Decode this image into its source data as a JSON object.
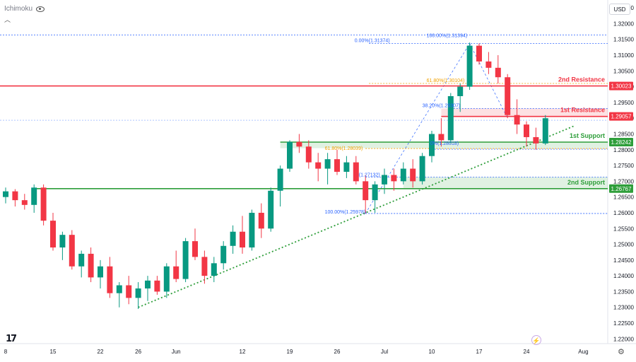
{
  "indicator": {
    "label": "Ichimoku"
  },
  "currency": {
    "label": "USD"
  },
  "chart_data": {
    "type": "candlestick",
    "symbol_hint": "GBP/USD daily-like candles",
    "ylim": [
      1.2185,
      1.3275
    ],
    "y_ticks": [
      "1.32500",
      "1.32000",
      "1.31500",
      "1.31000",
      "1.30500",
      "1.30000",
      "1.29500",
      "1.29000",
      "1.28500",
      "1.28000",
      "1.27500",
      "1.27000",
      "1.26500",
      "1.26000",
      "1.25500",
      "1.25000",
      "1.24500",
      "1.24000",
      "1.23500",
      "1.23000",
      "1.22500",
      "1.22000"
    ],
    "x_ticks": [
      {
        "label": "8",
        "i": 0
      },
      {
        "label": "15",
        "i": 5
      },
      {
        "label": "22",
        "i": 10
      },
      {
        "label": "26",
        "i": 14
      },
      {
        "label": "Jun",
        "i": 18
      },
      {
        "label": "12",
        "i": 25
      },
      {
        "label": "19",
        "i": 30
      },
      {
        "label": "26",
        "i": 35
      },
      {
        "label": "Jul",
        "i": 40
      },
      {
        "label": "10",
        "i": 45
      },
      {
        "label": "17",
        "i": 50
      },
      {
        "label": "24",
        "i": 55
      },
      {
        "label": "Aug",
        "i": 61
      }
    ],
    "candles": [
      [
        1.265,
        1.268,
        1.263,
        1.2668
      ],
      [
        1.2668,
        1.2675,
        1.262,
        1.264
      ],
      [
        1.264,
        1.266,
        1.261,
        1.2625
      ],
      [
        1.2625,
        1.269,
        1.26,
        1.268
      ],
      [
        1.268,
        1.269,
        1.256,
        1.2575
      ],
      [
        1.2575,
        1.26,
        1.248,
        1.249
      ],
      [
        1.249,
        1.254,
        1.245,
        1.253
      ],
      [
        1.253,
        1.2545,
        1.242,
        1.243
      ],
      [
        1.243,
        1.248,
        1.2395,
        1.247
      ],
      [
        1.247,
        1.249,
        1.238,
        1.2395
      ],
      [
        1.2395,
        1.245,
        1.236,
        1.243
      ],
      [
        1.243,
        1.246,
        1.233,
        1.2345
      ],
      [
        1.2345,
        1.238,
        1.23,
        1.237
      ],
      [
        1.237,
        1.24,
        1.231,
        1.233
      ],
      [
        1.233,
        1.238,
        1.2295,
        1.236
      ],
      [
        1.236,
        1.24,
        1.232,
        1.2385
      ],
      [
        1.2385,
        1.24,
        1.234,
        1.235
      ],
      [
        1.235,
        1.244,
        1.233,
        1.243
      ],
      [
        1.243,
        1.248,
        1.238,
        1.239
      ],
      [
        1.239,
        1.252,
        1.238,
        1.251
      ],
      [
        1.251,
        1.255,
        1.245,
        1.246
      ],
      [
        1.246,
        1.248,
        1.2375,
        1.24
      ],
      [
        1.24,
        1.246,
        1.238,
        1.244
      ],
      [
        1.244,
        1.251,
        1.242,
        1.2495
      ],
      [
        1.2495,
        1.256,
        1.247,
        1.254
      ],
      [
        1.254,
        1.259,
        1.247,
        1.249
      ],
      [
        1.249,
        1.261,
        1.248,
        1.26
      ],
      [
        1.26,
        1.263,
        1.252,
        1.255
      ],
      [
        1.255,
        1.268,
        1.254,
        1.267
      ],
      [
        1.267,
        1.275,
        1.262,
        1.274
      ],
      [
        1.274,
        1.283,
        1.273,
        1.2825
      ],
      [
        1.2825,
        1.285,
        1.279,
        1.281
      ],
      [
        1.281,
        1.283,
        1.274,
        1.276
      ],
      [
        1.276,
        1.279,
        1.27,
        1.274
      ],
      [
        1.274,
        1.279,
        1.269,
        1.277
      ],
      [
        1.277,
        1.28,
        1.272,
        1.273
      ],
      [
        1.273,
        1.278,
        1.271,
        1.276
      ],
      [
        1.276,
        1.278,
        1.269,
        1.27
      ],
      [
        1.27,
        1.272,
        1.2598,
        1.264
      ],
      [
        1.264,
        1.27,
        1.26,
        1.269
      ],
      [
        1.269,
        1.274,
        1.266,
        1.272
      ],
      [
        1.272,
        1.274,
        1.267,
        1.27
      ],
      [
        1.27,
        1.276,
        1.269,
        1.274
      ],
      [
        1.274,
        1.277,
        1.268,
        1.27
      ],
      [
        1.27,
        1.279,
        1.269,
        1.278
      ],
      [
        1.278,
        1.286,
        1.276,
        1.285
      ],
      [
        1.285,
        1.29,
        1.281,
        1.283
      ],
      [
        1.283,
        1.298,
        1.282,
        1.297
      ],
      [
        1.297,
        1.301,
        1.292,
        1.3
      ],
      [
        1.3,
        1.314,
        1.299,
        1.313
      ],
      [
        1.313,
        1.3137,
        1.307,
        1.308
      ],
      [
        1.308,
        1.311,
        1.304,
        1.306
      ],
      [
        1.306,
        1.31,
        1.301,
        1.303
      ],
      [
        1.303,
        1.304,
        1.29,
        1.291
      ],
      [
        1.291,
        1.296,
        1.285,
        1.288
      ],
      [
        1.288,
        1.289,
        1.281,
        1.284
      ],
      [
        1.284,
        1.287,
        1.28,
        1.282
      ],
      [
        1.282,
        1.291,
        1.2815,
        1.29
      ]
    ],
    "horizontal_levels": [
      {
        "value": 1.30023,
        "label": "2nd Resistance",
        "tag": "1.30023",
        "color": "#f23645",
        "kind": "resistance"
      },
      {
        "value": 1.29057,
        "label": "1st Resistance",
        "tag": "1.29057",
        "color": "#f23645",
        "kind": "resistance"
      },
      {
        "value": 1.28242,
        "label": "1st Support",
        "tag": "1.28242",
        "color": "#2e9e3a",
        "kind": "support"
      },
      {
        "value": 1.26767,
        "label": "2nd Support",
        "tag": "1.26767",
        "color": "#2e9e3a",
        "kind": "support"
      }
    ],
    "fib_labels": [
      {
        "text": "0.00%(1.31374)",
        "value": 1.31374,
        "color": "#2962ff"
      },
      {
        "text": "100.00%(1.31394)",
        "value": 1.31394,
        "color": "#2962ff"
      },
      {
        "text": "61.80%(1.30104)",
        "value": 1.30104,
        "color": "#f0a000"
      },
      {
        "text": "38.20%(1.29307)",
        "value": 1.29307,
        "color": "#2962ff"
      },
      {
        "text": "61.80%(1.28039)",
        "value": 1.28039,
        "color": "#f0a000"
      },
      {
        "text": "0%(1.28018)",
        "value": 1.28018,
        "color": "#2962ff"
      },
      {
        "text": "(1.27132)",
        "value": 1.27132,
        "color": "#2962ff"
      },
      {
        "text": "100.00%(1.25978)",
        "value": 1.25978,
        "color": "#2962ff"
      }
    ],
    "trendline": {
      "from": [
        14,
        1.23
      ],
      "to": [
        60,
        1.2875
      ]
    },
    "colors": {
      "up": "#089981",
      "down": "#f23645",
      "support": "#2e9e3a",
      "resistance": "#f23645",
      "fib": "#2962ff",
      "axis": "#131722"
    }
  }
}
